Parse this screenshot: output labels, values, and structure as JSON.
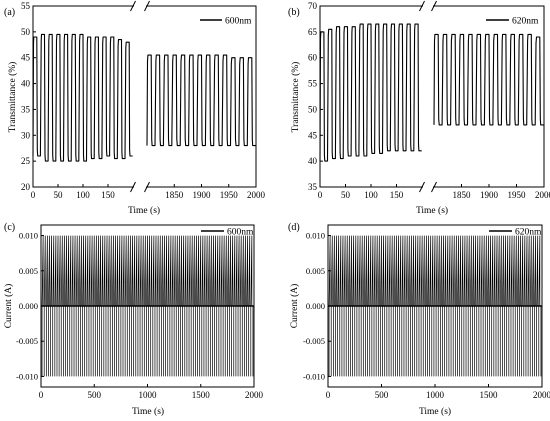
{
  "chart_data": [
    {
      "panel": "(a)",
      "type": "line",
      "xlabel": "Time (s)",
      "ylabel": "Transmittance (%)",
      "legend": "600nm",
      "legend_position": "top-right",
      "ylim": [
        20,
        55
      ],
      "yticks": [
        20,
        25,
        30,
        35,
        40,
        45,
        50,
        55
      ],
      "x_axis_break": true,
      "segments": [
        {
          "xlim": [
            0,
            200
          ],
          "xticks": [
            0,
            50,
            100,
            150
          ],
          "cycles": 13,
          "high_values": [
            49,
            49.5,
            49.5,
            49.5,
            49.5,
            49.5,
            49.5,
            49,
            49,
            49,
            49,
            48.5,
            48
          ],
          "low_values": [
            26,
            25,
            25,
            25,
            25,
            25,
            25,
            25.5,
            25.5,
            26,
            25.5,
            25.5,
            26
          ]
        },
        {
          "xlim": [
            1800,
            2000
          ],
          "xticks": [
            1850,
            1900,
            1950,
            2000
          ],
          "cycles": 13,
          "high_values": [
            45.5,
            45.5,
            45.5,
            45.5,
            45.5,
            45.5,
            45.5,
            45.5,
            45.5,
            45.5,
            45,
            45,
            45
          ],
          "low_values": [
            28,
            28,
            28,
            28,
            28,
            28,
            28,
            28,
            28,
            28,
            28,
            28,
            28
          ]
        }
      ]
    },
    {
      "panel": "(b)",
      "type": "line",
      "xlabel": "Time (s)",
      "ylabel": "Transmittance (%)",
      "legend": "620nm",
      "legend_position": "top-right",
      "ylim": [
        35,
        70
      ],
      "yticks": [
        35,
        40,
        45,
        50,
        55,
        60,
        65,
        70
      ],
      "x_axis_break": true,
      "segments": [
        {
          "xlim": [
            0,
            200
          ],
          "xticks": [
            0,
            50,
            100,
            150
          ],
          "cycles": 13,
          "high_values": [
            65,
            65.5,
            66,
            66,
            66,
            66.5,
            66.5,
            66.5,
            66.5,
            66.5,
            66.5,
            66.5,
            66.5
          ],
          "low_values": [
            40,
            40.5,
            40.5,
            41,
            41,
            41,
            41.5,
            41.5,
            42,
            42,
            42,
            42,
            42
          ]
        },
        {
          "xlim": [
            1800,
            2000
          ],
          "xticks": [
            1850,
            1900,
            1950,
            2000
          ],
          "cycles": 13,
          "high_values": [
            64.5,
            64.5,
            64.5,
            64.5,
            64.5,
            64.5,
            64.5,
            64.5,
            64.5,
            64.5,
            64.5,
            64.5,
            64
          ],
          "low_values": [
            47,
            47,
            47,
            47,
            47,
            47,
            47,
            47,
            47,
            47,
            47,
            47,
            47
          ]
        }
      ]
    },
    {
      "panel": "(c)",
      "type": "line",
      "xlabel": "Time (s)",
      "ylabel": "Current (A)",
      "legend": "600nm",
      "legend_position": "top-right",
      "xlim": [
        0,
        2000
      ],
      "xticks": [
        0,
        500,
        1000,
        1500,
        2000
      ],
      "ylim": [
        -0.0115,
        0.0115
      ],
      "yticks": [
        -0.01,
        -0.005,
        0.0,
        0.005,
        0.01
      ],
      "ytick_labels": [
        "-0.010",
        "-0.005",
        "0.000",
        "0.005",
        "0.010"
      ],
      "cycles": 100,
      "high_value": 0.01,
      "low_value": -0.01,
      "baseline": 0.0
    },
    {
      "panel": "(d)",
      "type": "line",
      "xlabel": "Time (s)",
      "ylabel": "Current (A)",
      "legend": "620nm",
      "legend_position": "top-right",
      "xlim": [
        0,
        2000
      ],
      "xticks": [
        0,
        500,
        1000,
        1500,
        2000
      ],
      "ylim": [
        -0.0115,
        0.0115
      ],
      "yticks": [
        -0.01,
        -0.005,
        0.0,
        0.005,
        0.01
      ],
      "ytick_labels": [
        "-0.010",
        "-0.005",
        "0.000",
        "0.005",
        "0.010"
      ],
      "cycles": 100,
      "high_value": 0.01,
      "low_value": -0.01,
      "baseline": 0.0
    }
  ]
}
